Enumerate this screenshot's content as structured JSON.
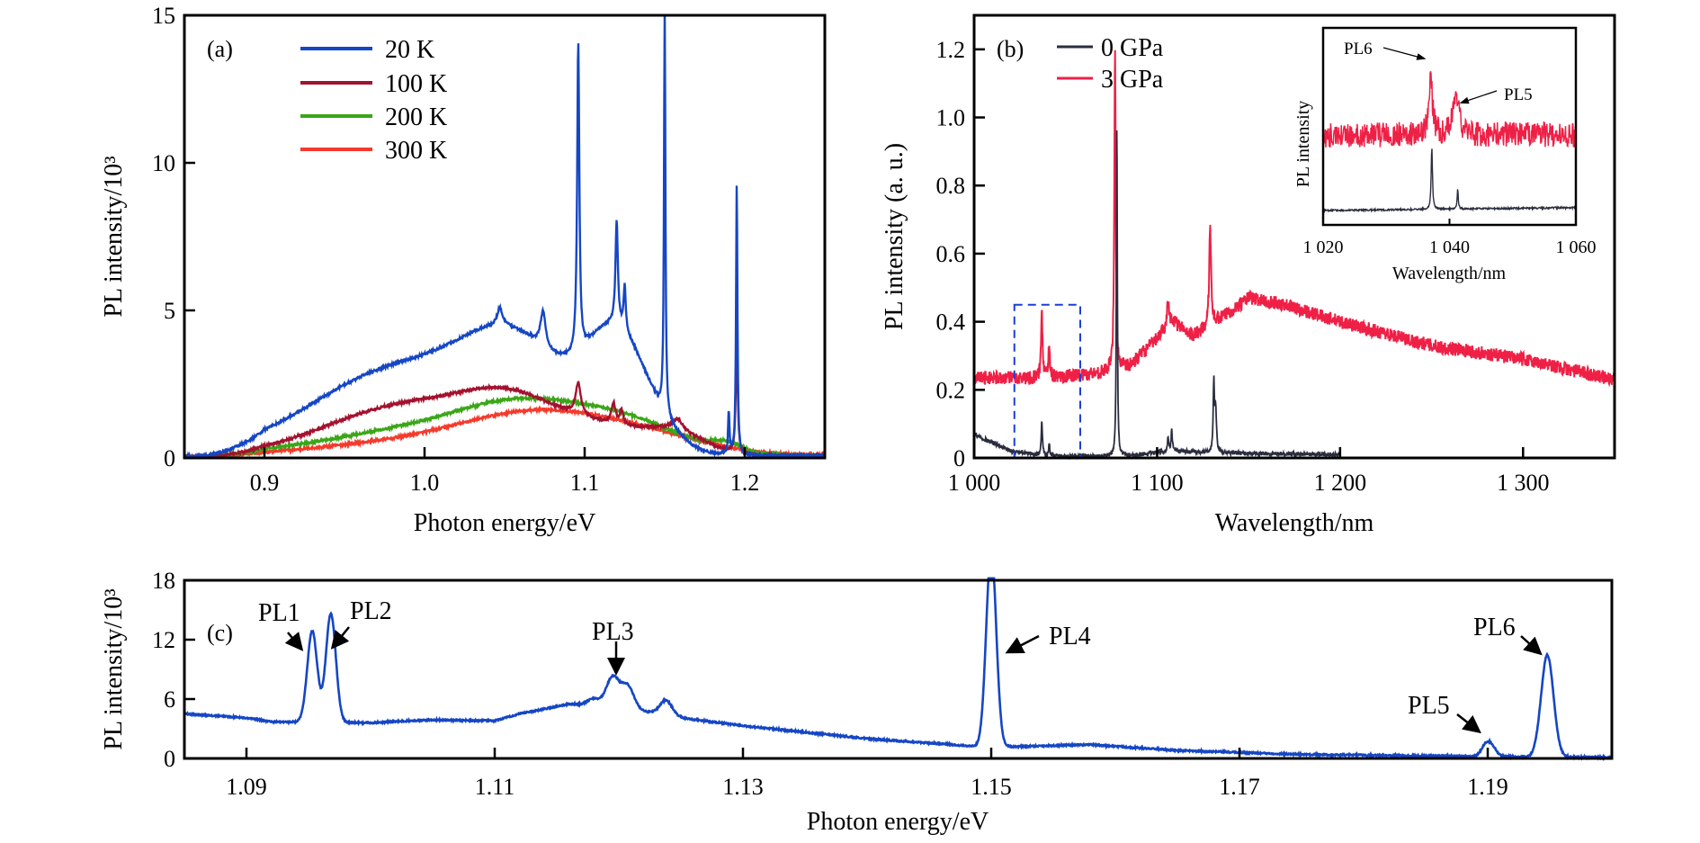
{
  "chart_data": [
    {
      "id": "a",
      "type": "line",
      "panel_label": "(a)",
      "xlabel": "Photon energy/eV",
      "ylabel": "PL intensity/10³",
      "xlim": [
        0.85,
        1.25
      ],
      "ylim": [
        0,
        15
      ],
      "xticks": [
        0.9,
        1.0,
        1.1,
        1.2
      ],
      "xtick_labels": [
        "0.9",
        "1.0",
        "1.1",
        "1.2"
      ],
      "yticks": [
        0,
        5,
        10,
        15
      ],
      "ytick_labels": [
        "0",
        "5",
        "10",
        "15"
      ],
      "legend_position": "top-left",
      "series": [
        {
          "name": "20 K",
          "color": "#1546c4",
          "broad": [
            [
              0.985,
              0.055,
              2.9
            ],
            [
              1.055,
              0.03,
              2.2
            ],
            [
              1.12,
              0.018,
              3.2
            ],
            [
              1.085,
              0.05,
              1.0
            ],
            [
              1.15,
              0.02,
              0.6
            ]
          ],
          "peaks": [
            [
              1.047,
              0.002,
              0.6
            ],
            [
              1.074,
              0.002,
              1.2
            ],
            [
              1.096,
              0.0008,
              10.5
            ],
            [
              1.12,
              0.0009,
              3.5
            ],
            [
              1.125,
              0.0008,
              1.5
            ],
            [
              1.15,
              0.0005,
              14.0
            ],
            [
              1.19,
              0.0005,
              1.5
            ],
            [
              1.195,
              0.0005,
              9.2
            ]
          ],
          "cutoff": [
            1.165,
            0.012
          ]
        },
        {
          "name": "100 K",
          "color": "#a3122e",
          "broad": [
            [
              0.99,
              0.05,
              1.7
            ],
            [
              1.055,
              0.03,
              1.4
            ],
            [
              1.115,
              0.03,
              0.8
            ],
            [
              1.16,
              0.02,
              0.6
            ]
          ],
          "peaks": [
            [
              1.096,
              0.002,
              1.1
            ],
            [
              1.118,
              0.0015,
              0.7
            ],
            [
              1.123,
              0.0012,
              0.5
            ],
            [
              1.158,
              0.004,
              0.4
            ],
            [
              1.195,
              0.0007,
              3.9
            ]
          ],
          "cutoff": [
            1.2,
            0.015
          ]
        },
        {
          "name": "200 K",
          "color": "#3aa617",
          "broad": [
            [
              1.0,
              0.06,
              0.9
            ],
            [
              1.055,
              0.035,
              1.0
            ],
            [
              1.12,
              0.04,
              1.25
            ],
            [
              1.19,
              0.01,
              0.35
            ]
          ],
          "peaks": [],
          "cutoff": [
            1.22,
            0.025
          ]
        },
        {
          "name": "300 K",
          "color": "#f53a2c",
          "broad": [
            [
              1.0,
              0.06,
              0.5
            ],
            [
              1.06,
              0.04,
              0.75
            ],
            [
              1.12,
              0.05,
              0.95
            ]
          ],
          "peaks": [],
          "cutoff": [
            1.23,
            0.03
          ]
        }
      ]
    },
    {
      "id": "b",
      "type": "line",
      "panel_label": "(b)",
      "xlabel": "Wavelength/nm",
      "ylabel": "PL intensity (a. u.)",
      "xlim": [
        1000,
        1350
      ],
      "ylim": [
        0,
        1.3
      ],
      "xticks": [
        1000,
        1100,
        1200,
        1300
      ],
      "xtick_labels": [
        "1 000",
        "1 100",
        "1 200",
        "1 300"
      ],
      "yticks": [
        0,
        0.2,
        0.4,
        0.6,
        0.8,
        1.0,
        1.2
      ],
      "ytick_labels": [
        "0",
        "0.2",
        "0.4",
        "0.6",
        "0.8",
        "1.0",
        "1.2"
      ],
      "legend_position": "top-center",
      "highlight_box": {
        "x": [
          1022,
          1058
        ],
        "y": [
          0,
          0.45
        ],
        "color": "#1a3fd6"
      },
      "series": [
        {
          "name": "0 GPa",
          "color": "#2b2d3f",
          "x_range": [
            1000,
            1200
          ],
          "baseline": [
            [
              1000,
              0.07
            ],
            [
              1020,
              0.02
            ],
            [
              1040,
              0.005
            ],
            [
              1080,
              0.005
            ],
            [
              1100,
              0.015
            ],
            [
              1110,
              0.02
            ],
            [
              1130,
              0.015
            ],
            [
              1200,
              0.01
            ]
          ],
          "peaks": [
            [
              1037,
              0.4,
              0.1
            ],
            [
              1041,
              0.4,
              0.035
            ],
            [
              1078,
              0.3,
              1.0
            ],
            [
              1106,
              0.4,
              0.04
            ],
            [
              1108,
              0.4,
              0.06
            ],
            [
              1131,
              0.4,
              0.2
            ],
            [
              1132,
              0.5,
              0.12
            ]
          ],
          "noise": 0.006
        },
        {
          "name": "3 GPa",
          "color": "#ef2046",
          "x_range": [
            1000,
            1350
          ],
          "baseline": [
            [
              1000,
              0.235
            ],
            [
              1040,
              0.235
            ],
            [
              1070,
              0.25
            ],
            [
              1085,
              0.27
            ],
            [
              1100,
              0.35
            ],
            [
              1108,
              0.4
            ],
            [
              1120,
              0.36
            ],
            [
              1130,
              0.39
            ],
            [
              1150,
              0.47
            ],
            [
              1170,
              0.45
            ],
            [
              1200,
              0.4
            ],
            [
              1250,
              0.33
            ],
            [
              1300,
              0.29
            ],
            [
              1350,
              0.23
            ]
          ],
          "peaks": [
            [
              1037,
              0.5,
              0.19
            ],
            [
              1041,
              0.5,
              0.1
            ],
            [
              1077,
              0.45,
              0.96
            ],
            [
              1106,
              0.8,
              0.07
            ],
            [
              1129,
              0.6,
              0.3
            ]
          ],
          "noise": 0.02
        }
      ],
      "inset": {
        "xlabel": "Wavelength/nm",
        "ylabel": "PL intensity",
        "xlim": [
          1020,
          1060
        ],
        "xticks": [
          1020,
          1040,
          1060
        ],
        "xtick_labels": [
          "1 020",
          "1 040",
          "1 060"
        ],
        "annotations": [
          {
            "text": "PL6",
            "x": 1037,
            "series": "3 GPa"
          },
          {
            "text": "PL5",
            "x": 1041,
            "series": "3 GPa"
          }
        ]
      }
    },
    {
      "id": "c",
      "type": "line",
      "panel_label": "(c)",
      "xlabel": "Photon energy/eV",
      "ylabel": "PL intensity/10³",
      "xlim": [
        1.085,
        1.2
      ],
      "ylim": [
        0,
        18
      ],
      "xticks": [
        1.09,
        1.11,
        1.13,
        1.15,
        1.17,
        1.19
      ],
      "xtick_labels": [
        "1.09",
        "1.11",
        "1.13",
        "1.15",
        "1.17",
        "1.19"
      ],
      "yticks": [
        0,
        6,
        12,
        18
      ],
      "ytick_labels": [
        "0",
        "6",
        "12",
        "18"
      ],
      "series": [
        {
          "name": "20 K",
          "color": "#1546c4",
          "baseline": [
            [
              1.085,
              4.5
            ],
            [
              1.09,
              4.1
            ],
            [
              1.092,
              3.7
            ],
            [
              1.1,
              3.6
            ],
            [
              1.105,
              3.9
            ],
            [
              1.11,
              3.8
            ],
            [
              1.112,
              4.5
            ],
            [
              1.116,
              5.5
            ],
            [
              1.12,
              5.2
            ],
            [
              1.125,
              4.1
            ],
            [
              1.13,
              3.3
            ],
            [
              1.14,
              2.0
            ],
            [
              1.149,
              1.2
            ],
            [
              1.152,
              1.2
            ],
            [
              1.158,
              1.4
            ],
            [
              1.165,
              0.8
            ],
            [
              1.175,
              0.4
            ],
            [
              1.19,
              0.2
            ],
            [
              1.2,
              0.1
            ]
          ],
          "peaks": [
            [
              1.0953,
              0.0004,
              9.2
            ],
            [
              1.0968,
              0.0004,
              11.0
            ],
            [
              1.118,
              0.0005,
              0.7
            ],
            [
              1.1195,
              0.0005,
              3.0
            ],
            [
              1.1207,
              0.0005,
              2.3
            ],
            [
              1.1238,
              0.0005,
              1.5
            ],
            [
              1.15,
              0.0004,
              20.0
            ],
            [
              1.1897,
              0.0003,
              0.6
            ],
            [
              1.1902,
              0.0004,
              1.3
            ],
            [
              1.1948,
              0.0005,
              10.3
            ]
          ]
        }
      ],
      "annotations": [
        {
          "text": "PL1",
          "x": 1.0953
        },
        {
          "text": "PL2",
          "x": 1.0968
        },
        {
          "text": "PL3",
          "x": 1.1195
        },
        {
          "text": "PL4",
          "x": 1.1503
        },
        {
          "text": "PL5",
          "x": 1.1902
        },
        {
          "text": "PL6",
          "x": 1.1948
        }
      ]
    }
  ]
}
